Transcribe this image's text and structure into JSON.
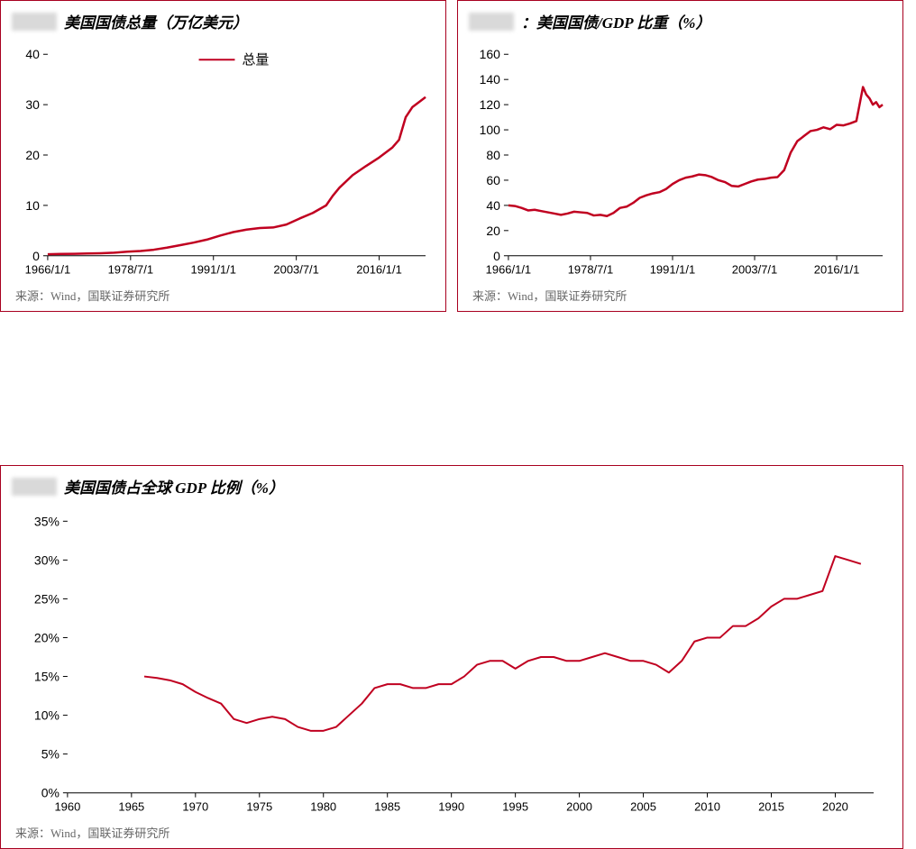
{
  "source_label": "来源：Wind，国联证券研究所",
  "chart1": {
    "type": "line",
    "title": "美国国债总量（万亿美元）",
    "legend": {
      "label": "总量",
      "color": "#c00020"
    },
    "line_color": "#c00020",
    "line_width": 2.5,
    "xlim": [
      1966,
      2023
    ],
    "ylim": [
      0,
      40
    ],
    "ytick_step": 10,
    "yticks": [
      0,
      10,
      20,
      30,
      40
    ],
    "xticks": [
      {
        "v": 1966,
        "label": "1966/1/1"
      },
      {
        "v": 1978.5,
        "label": "1978/7/1"
      },
      {
        "v": 1991,
        "label": "1991/1/1"
      },
      {
        "v": 2003.5,
        "label": "2003/7/1"
      },
      {
        "v": 2016,
        "label": "2016/1/1"
      }
    ],
    "data": [
      {
        "x": 1966,
        "y": 0.3
      },
      {
        "x": 1968,
        "y": 0.35
      },
      {
        "x": 1970,
        "y": 0.4
      },
      {
        "x": 1972,
        "y": 0.45
      },
      {
        "x": 1974,
        "y": 0.5
      },
      {
        "x": 1976,
        "y": 0.6
      },
      {
        "x": 1978,
        "y": 0.8
      },
      {
        "x": 1980,
        "y": 0.95
      },
      {
        "x": 1982,
        "y": 1.2
      },
      {
        "x": 1984,
        "y": 1.6
      },
      {
        "x": 1986,
        "y": 2.1
      },
      {
        "x": 1988,
        "y": 2.6
      },
      {
        "x": 1990,
        "y": 3.2
      },
      {
        "x": 1992,
        "y": 4.0
      },
      {
        "x": 1994,
        "y": 4.7
      },
      {
        "x": 1996,
        "y": 5.2
      },
      {
        "x": 1998,
        "y": 5.5
      },
      {
        "x": 2000,
        "y": 5.6
      },
      {
        "x": 2002,
        "y": 6.2
      },
      {
        "x": 2004,
        "y": 7.4
      },
      {
        "x": 2006,
        "y": 8.5
      },
      {
        "x": 2008,
        "y": 10.0
      },
      {
        "x": 2009,
        "y": 11.9
      },
      {
        "x": 2010,
        "y": 13.5
      },
      {
        "x": 2012,
        "y": 16.0
      },
      {
        "x": 2014,
        "y": 17.8
      },
      {
        "x": 2016,
        "y": 19.5
      },
      {
        "x": 2018,
        "y": 21.5
      },
      {
        "x": 2019,
        "y": 23.0
      },
      {
        "x": 2020,
        "y": 27.5
      },
      {
        "x": 2021,
        "y": 29.5
      },
      {
        "x": 2022,
        "y": 30.5
      },
      {
        "x": 2023,
        "y": 31.5
      }
    ],
    "background_color": "#ffffff"
  },
  "chart2": {
    "type": "line",
    "title": "美国国债/GDP 比重（%）",
    "pre_colon": "：",
    "line_color": "#c00020",
    "line_width": 2.5,
    "xlim": [
      1966,
      2023
    ],
    "ylim": [
      0,
      160
    ],
    "ytick_step": 20,
    "yticks": [
      0,
      20,
      40,
      60,
      80,
      100,
      120,
      140,
      160
    ],
    "xticks": [
      {
        "v": 1966,
        "label": "1966/1/1"
      },
      {
        "v": 1978.5,
        "label": "1978/7/1"
      },
      {
        "v": 1991,
        "label": "1991/1/1"
      },
      {
        "v": 2003.5,
        "label": "2003/7/1"
      },
      {
        "v": 2016,
        "label": "2016/1/1"
      }
    ],
    "data": [
      {
        "x": 1966,
        "y": 40
      },
      {
        "x": 1967,
        "y": 39.5
      },
      {
        "x": 1968,
        "y": 38
      },
      {
        "x": 1969,
        "y": 36
      },
      {
        "x": 1970,
        "y": 36.5
      },
      {
        "x": 1971,
        "y": 35.5
      },
      {
        "x": 1972,
        "y": 34.5
      },
      {
        "x": 1973,
        "y": 33.5
      },
      {
        "x": 1974,
        "y": 32.5
      },
      {
        "x": 1975,
        "y": 33.5
      },
      {
        "x": 1976,
        "y": 35
      },
      {
        "x": 1977,
        "y": 34.5
      },
      {
        "x": 1978,
        "y": 34
      },
      {
        "x": 1979,
        "y": 32
      },
      {
        "x": 1980,
        "y": 32.5
      },
      {
        "x": 1981,
        "y": 31.5
      },
      {
        "x": 1982,
        "y": 34
      },
      {
        "x": 1983,
        "y": 38
      },
      {
        "x": 1984,
        "y": 39
      },
      {
        "x": 1985,
        "y": 42
      },
      {
        "x": 1986,
        "y": 46
      },
      {
        "x": 1987,
        "y": 48
      },
      {
        "x": 1988,
        "y": 49.5
      },
      {
        "x": 1989,
        "y": 50.5
      },
      {
        "x": 1990,
        "y": 53
      },
      {
        "x": 1991,
        "y": 57
      },
      {
        "x": 1992,
        "y": 60
      },
      {
        "x": 1993,
        "y": 62
      },
      {
        "x": 1994,
        "y": 63
      },
      {
        "x": 1995,
        "y": 64.5
      },
      {
        "x": 1996,
        "y": 64
      },
      {
        "x": 1997,
        "y": 62.5
      },
      {
        "x": 1998,
        "y": 60
      },
      {
        "x": 1999,
        "y": 58.5
      },
      {
        "x": 2000,
        "y": 55.5
      },
      {
        "x": 2001,
        "y": 55
      },
      {
        "x": 2002,
        "y": 57
      },
      {
        "x": 2003,
        "y": 59
      },
      {
        "x": 2004,
        "y": 60.5
      },
      {
        "x": 2005,
        "y": 61
      },
      {
        "x": 2006,
        "y": 62
      },
      {
        "x": 2007,
        "y": 62.5
      },
      {
        "x": 2008,
        "y": 68
      },
      {
        "x": 2009,
        "y": 82
      },
      {
        "x": 2010,
        "y": 91
      },
      {
        "x": 2011,
        "y": 95
      },
      {
        "x": 2012,
        "y": 99
      },
      {
        "x": 2013,
        "y": 100
      },
      {
        "x": 2014,
        "y": 102
      },
      {
        "x": 2015,
        "y": 100.5
      },
      {
        "x": 2016,
        "y": 104
      },
      {
        "x": 2017,
        "y": 103.5
      },
      {
        "x": 2018,
        "y": 105
      },
      {
        "x": 2019,
        "y": 107
      },
      {
        "x": 2020,
        "y": 134
      },
      {
        "x": 2020.5,
        "y": 128
      },
      {
        "x": 2021,
        "y": 125
      },
      {
        "x": 2021.5,
        "y": 120
      },
      {
        "x": 2022,
        "y": 122
      },
      {
        "x": 2022.5,
        "y": 118
      },
      {
        "x": 2023,
        "y": 120
      }
    ],
    "background_color": "#ffffff"
  },
  "chart3": {
    "type": "line",
    "title": "美国国债占全球 GDP 比例（%）",
    "line_color": "#c00020",
    "line_width": 2,
    "xlim": [
      1960,
      2023
    ],
    "ylim": [
      0,
      35
    ],
    "ytick_step": 5,
    "yticks": [
      0,
      5,
      10,
      15,
      20,
      25,
      30,
      35
    ],
    "ytick_suffix": "%",
    "xticks": [
      {
        "v": 1960,
        "label": "1960"
      },
      {
        "v": 1965,
        "label": "1965"
      },
      {
        "v": 1970,
        "label": "1970"
      },
      {
        "v": 1975,
        "label": "1975"
      },
      {
        "v": 1980,
        "label": "1980"
      },
      {
        "v": 1985,
        "label": "1985"
      },
      {
        "v": 1990,
        "label": "1990"
      },
      {
        "v": 1995,
        "label": "1995"
      },
      {
        "v": 2000,
        "label": "2000"
      },
      {
        "v": 2005,
        "label": "2005"
      },
      {
        "v": 2010,
        "label": "2010"
      },
      {
        "v": 2015,
        "label": "2015"
      },
      {
        "v": 2020,
        "label": "2020"
      }
    ],
    "data": [
      {
        "x": 1966,
        "y": 15.0
      },
      {
        "x": 1967,
        "y": 14.8
      },
      {
        "x": 1968,
        "y": 14.5
      },
      {
        "x": 1969,
        "y": 14.0
      },
      {
        "x": 1970,
        "y": 13.0
      },
      {
        "x": 1971,
        "y": 12.2
      },
      {
        "x": 1972,
        "y": 11.5
      },
      {
        "x": 1973,
        "y": 9.5
      },
      {
        "x": 1974,
        "y": 9.0
      },
      {
        "x": 1975,
        "y": 9.5
      },
      {
        "x": 1976,
        "y": 9.8
      },
      {
        "x": 1977,
        "y": 9.5
      },
      {
        "x": 1978,
        "y": 8.5
      },
      {
        "x": 1979,
        "y": 8.0
      },
      {
        "x": 1980,
        "y": 8.0
      },
      {
        "x": 1981,
        "y": 8.5
      },
      {
        "x": 1982,
        "y": 10.0
      },
      {
        "x": 1983,
        "y": 11.5
      },
      {
        "x": 1984,
        "y": 13.5
      },
      {
        "x": 1985,
        "y": 14.0
      },
      {
        "x": 1986,
        "y": 14.0
      },
      {
        "x": 1987,
        "y": 13.5
      },
      {
        "x": 1988,
        "y": 13.5
      },
      {
        "x": 1989,
        "y": 14.0
      },
      {
        "x": 1990,
        "y": 14.0
      },
      {
        "x": 1991,
        "y": 15.0
      },
      {
        "x": 1992,
        "y": 16.5
      },
      {
        "x": 1993,
        "y": 17.0
      },
      {
        "x": 1994,
        "y": 17.0
      },
      {
        "x": 1995,
        "y": 16.0
      },
      {
        "x": 1996,
        "y": 17.0
      },
      {
        "x": 1997,
        "y": 17.5
      },
      {
        "x": 1998,
        "y": 17.5
      },
      {
        "x": 1999,
        "y": 17.0
      },
      {
        "x": 2000,
        "y": 17.0
      },
      {
        "x": 2001,
        "y": 17.5
      },
      {
        "x": 2002,
        "y": 18.0
      },
      {
        "x": 2003,
        "y": 17.5
      },
      {
        "x": 2004,
        "y": 17.0
      },
      {
        "x": 2005,
        "y": 17.0
      },
      {
        "x": 2006,
        "y": 16.5
      },
      {
        "x": 2007,
        "y": 15.5
      },
      {
        "x": 2008,
        "y": 17.0
      },
      {
        "x": 2009,
        "y": 19.5
      },
      {
        "x": 2010,
        "y": 20.0
      },
      {
        "x": 2011,
        "y": 20.0
      },
      {
        "x": 2012,
        "y": 21.5
      },
      {
        "x": 2013,
        "y": 21.5
      },
      {
        "x": 2014,
        "y": 22.5
      },
      {
        "x": 2015,
        "y": 24.0
      },
      {
        "x": 2016,
        "y": 25.0
      },
      {
        "x": 2017,
        "y": 25.0
      },
      {
        "x": 2018,
        "y": 25.5
      },
      {
        "x": 2019,
        "y": 26.0
      },
      {
        "x": 2020,
        "y": 30.5
      },
      {
        "x": 2021,
        "y": 30.0
      },
      {
        "x": 2022,
        "y": 29.5
      }
    ],
    "background_color": "#ffffff"
  }
}
